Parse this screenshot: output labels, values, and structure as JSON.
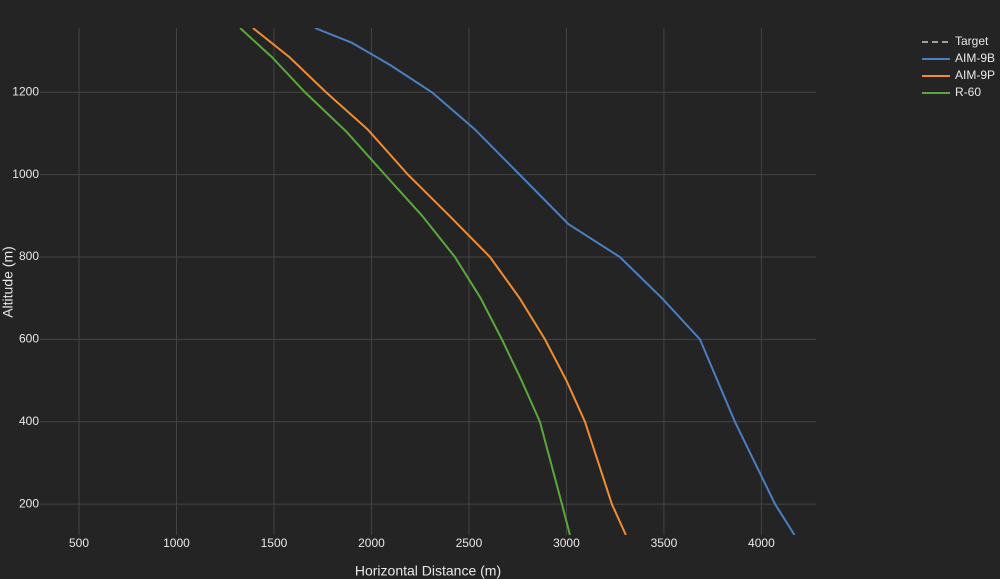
{
  "chart_data": {
    "type": "line",
    "x_label": "Horizontal Distance (m)",
    "y_label": "Altitude (m)",
    "xlim": [
      300,
      4280
    ],
    "ylim": [
      125,
      1356
    ],
    "xticks": [
      500,
      1000,
      1500,
      2000,
      2500,
      3000,
      3500,
      4000
    ],
    "yticks": [
      200,
      400,
      600,
      800,
      1000,
      1200
    ],
    "grid": true,
    "legend": "right",
    "series": [
      {
        "name": "Target",
        "color": "#a0a0a0",
        "dash": true,
        "x": [],
        "values": []
      },
      {
        "name": "AIM-9B",
        "color": "#4a7fc1",
        "x": [
          1710,
          1900,
          2100,
          2310,
          2530,
          2760,
          3010,
          3274,
          3490,
          3685,
          3864,
          4070,
          4170
        ],
        "values": [
          1356,
          1320,
          1265,
          1200,
          1110,
          1000,
          880,
          800,
          700,
          600,
          400,
          200,
          125
        ]
      },
      {
        "name": "AIM-9P",
        "color": "#f08c32",
        "x": [
          1392,
          1580,
          1767,
          1980,
          2187,
          2400,
          2608,
          2760,
          2890,
          3000,
          3095,
          3233,
          3305
        ],
        "values": [
          1356,
          1285,
          1200,
          1110,
          1000,
          900,
          800,
          700,
          600,
          500,
          400,
          200,
          125
        ]
      },
      {
        "name": "R-60",
        "color": "#5aa83c",
        "x": [
          1326,
          1490,
          1659,
          1870,
          2069,
          2260,
          2428,
          2560,
          2669,
          2770,
          2864,
          2977,
          3018
        ],
        "values": [
          1356,
          1285,
          1200,
          1105,
          1000,
          900,
          800,
          700,
          600,
          500,
          400,
          200,
          125
        ]
      }
    ]
  }
}
